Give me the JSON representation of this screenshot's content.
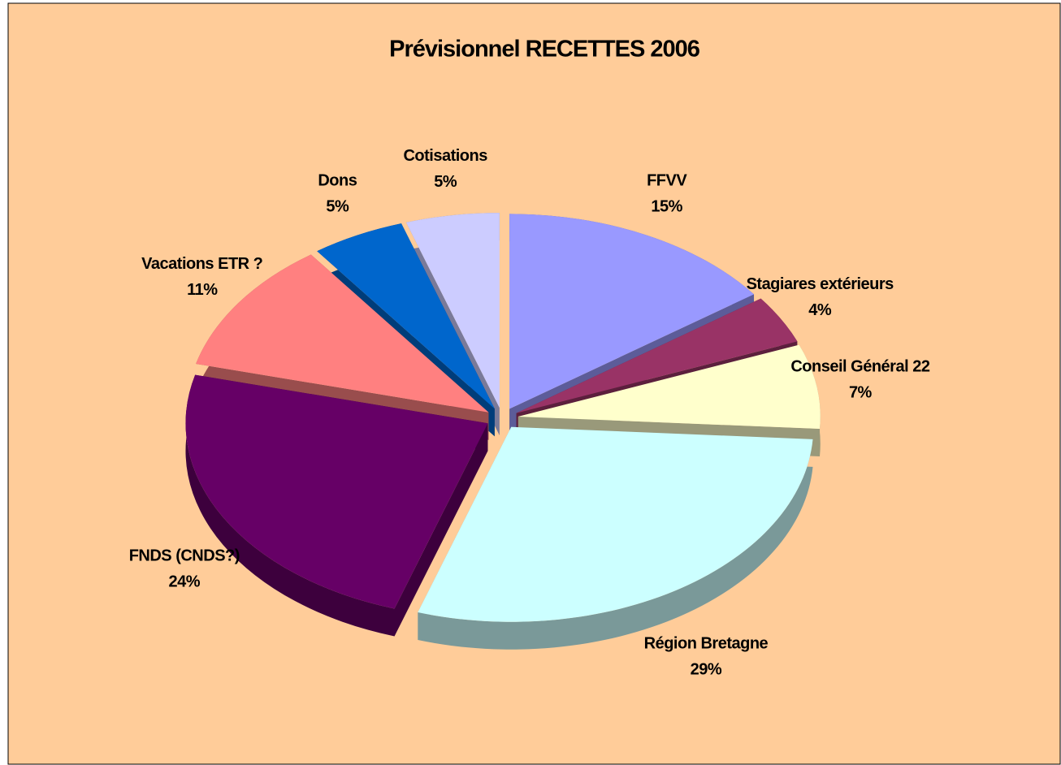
{
  "chart_data": {
    "type": "pie",
    "title": "Prévisionnel RECETTES 2006",
    "categories": [
      "FFVV",
      "Stagiares extérieurs",
      "Conseil Général 22",
      "Région Bretagne",
      "FNDS (CNDS?)",
      "Vacations ETR ?",
      "Dons",
      "Cotisations"
    ],
    "values": [
      15,
      4,
      7,
      29,
      24,
      11,
      5,
      5
    ],
    "value_labels": [
      "15%",
      "4%",
      "7%",
      "29%",
      "24%",
      "11%",
      "5%",
      "5%"
    ],
    "colors": [
      "#9999ff",
      "#993366",
      "#ffffcc",
      "#ccffff",
      "#660066",
      "#ff8080",
      "#0066cc",
      "#ccccff"
    ],
    "background": "#ffcc99"
  }
}
